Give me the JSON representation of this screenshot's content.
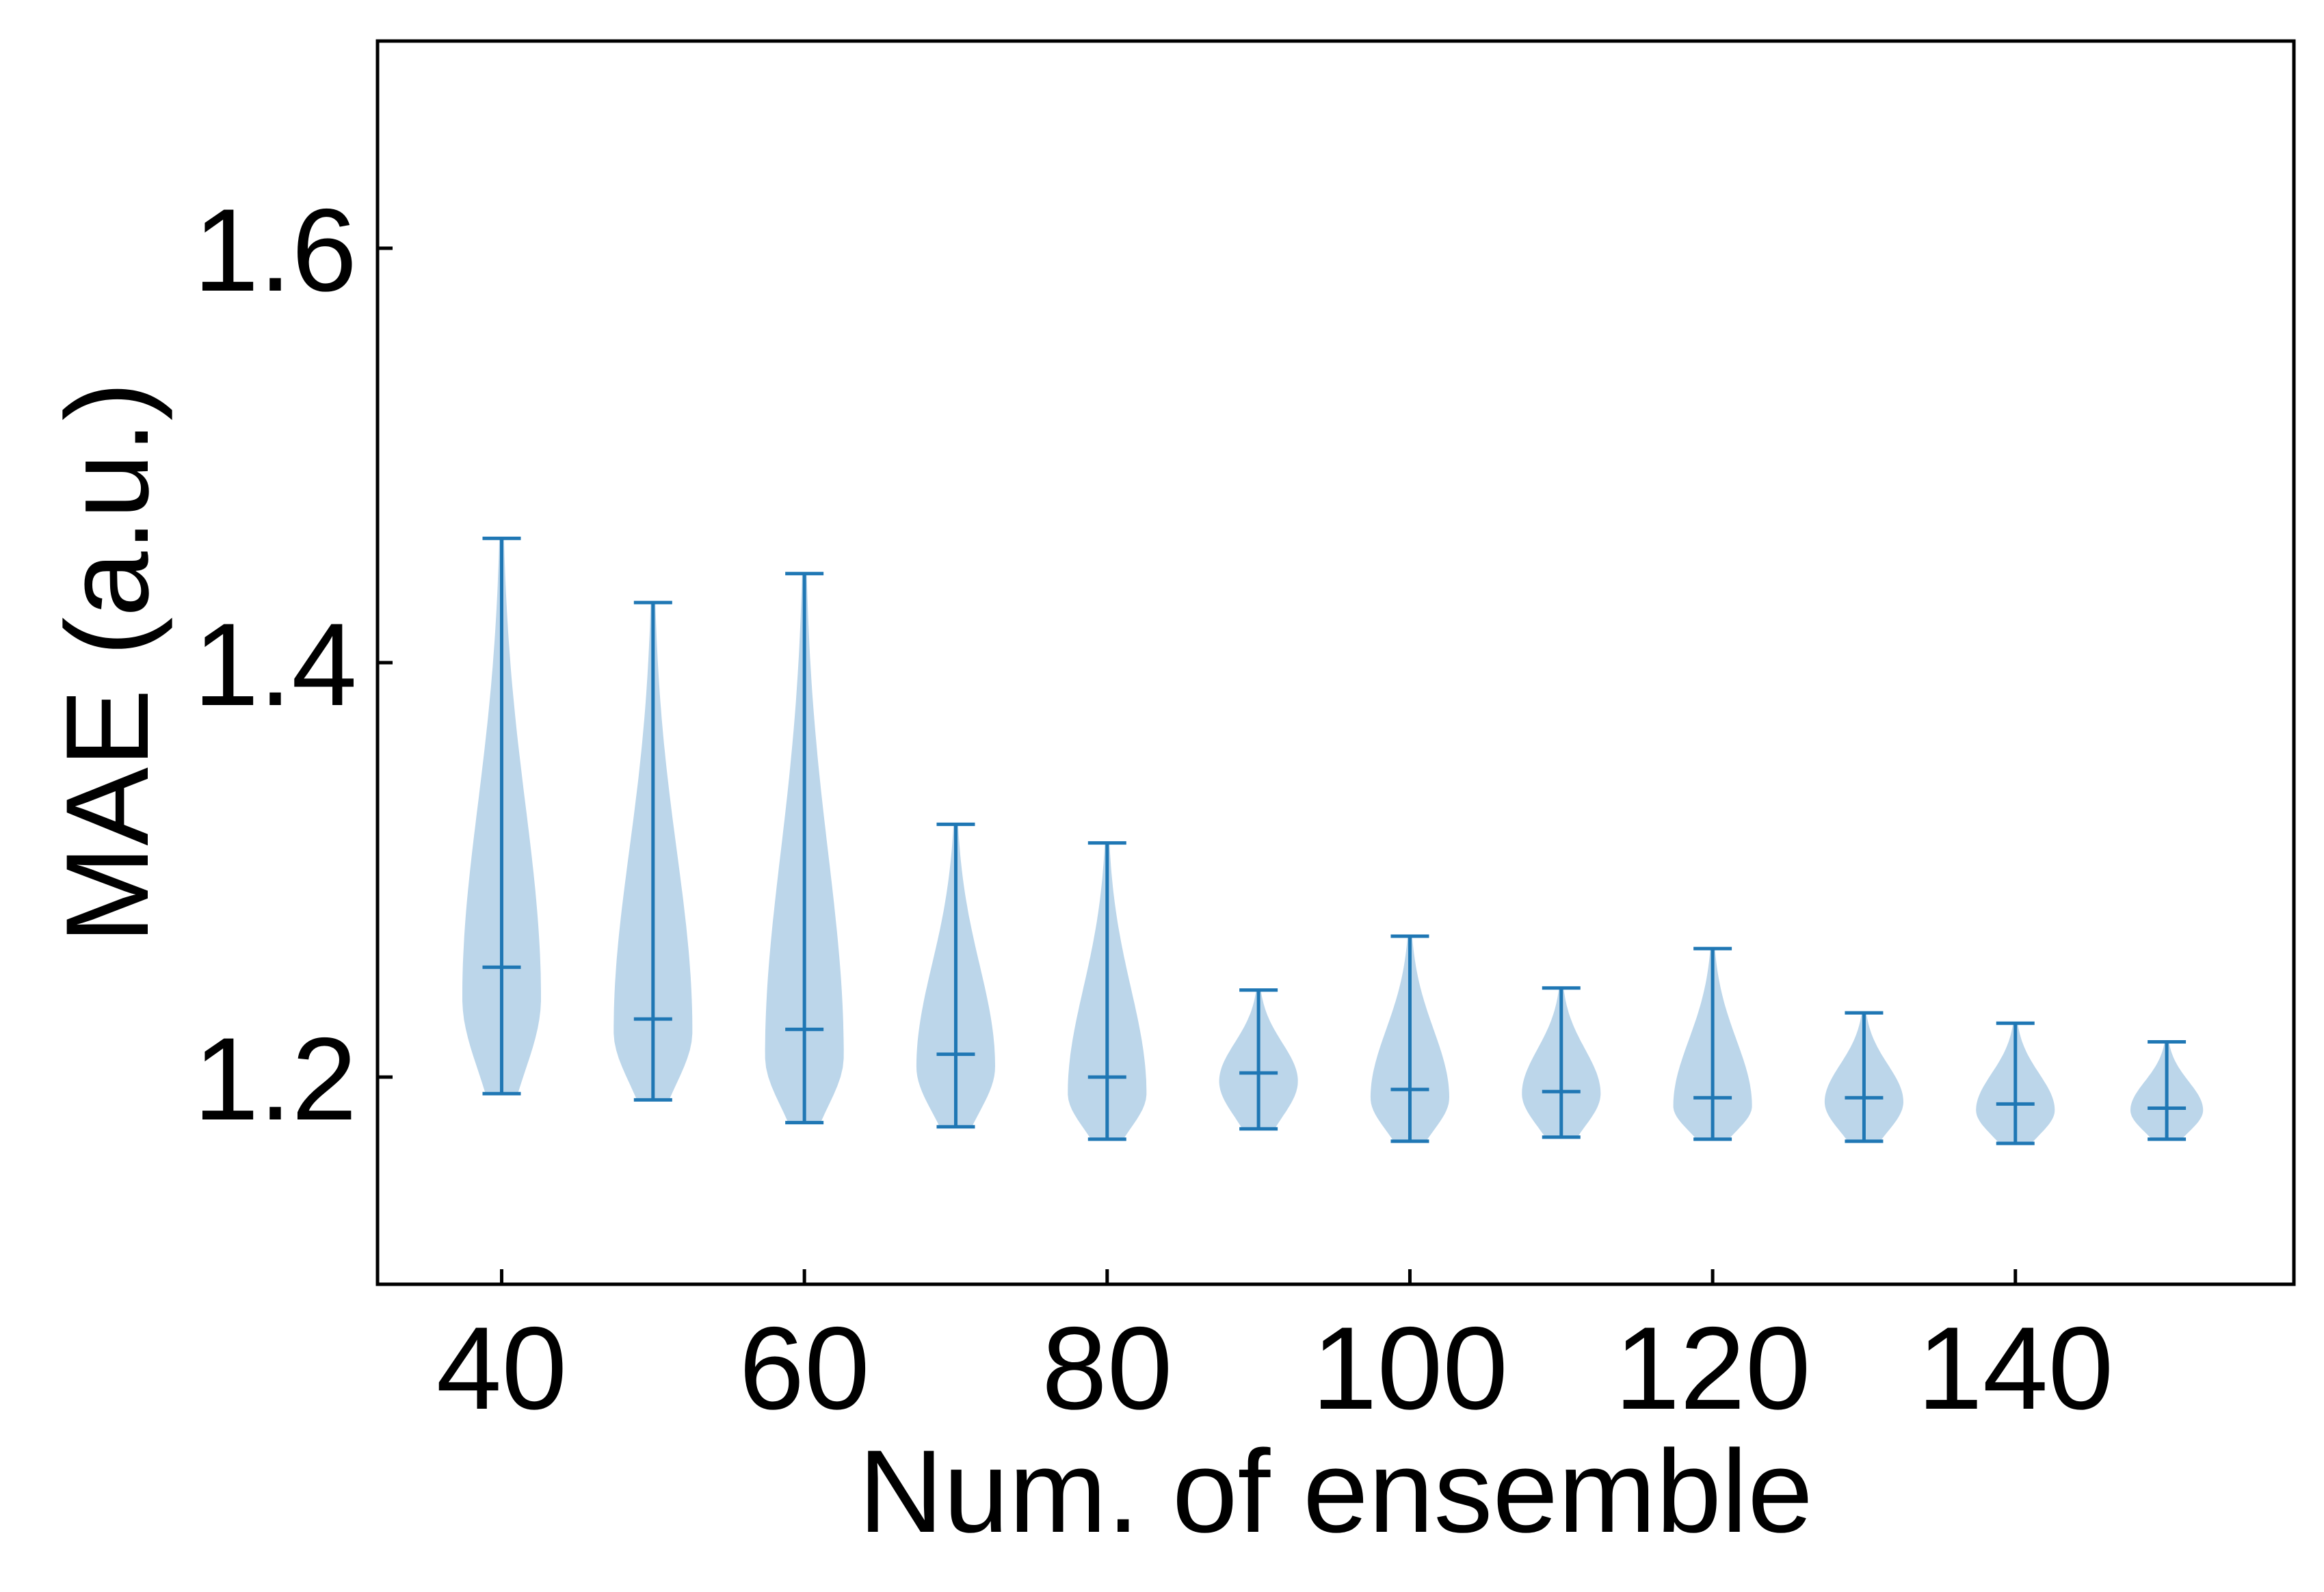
{
  "chart_data": {
    "type": "violin",
    "xlabel": "Num. of ensemble",
    "ylabel": "MAE (a.u.)",
    "xlim": [
      31.8,
      158.4
    ],
    "ylim": [
      1.1,
      1.7
    ],
    "xticks": [
      40,
      60,
      80,
      100,
      120,
      140
    ],
    "xtick_labels": [
      "40",
      "60",
      "80",
      "100",
      "120",
      "140"
    ],
    "yticks": [
      1.2,
      1.4,
      1.6
    ],
    "ytick_labels": [
      "1.2",
      "1.4",
      "1.6"
    ],
    "grid": false,
    "colors": {
      "body": "#bcd6ea",
      "lines": "#1f77b4",
      "axes": "#000000"
    },
    "violins": [
      {
        "x": 40,
        "min": 1.192,
        "max": 1.46,
        "mean": 1.253,
        "density_peak": 1.238,
        "max_half_width": 2.6
      },
      {
        "x": 50,
        "min": 1.189,
        "max": 1.429,
        "mean": 1.228,
        "density_peak": 1.222,
        "max_half_width": 2.6
      },
      {
        "x": 60,
        "min": 1.178,
        "max": 1.443,
        "mean": 1.223,
        "density_peak": 1.21,
        "max_half_width": 2.6
      },
      {
        "x": 70,
        "min": 1.176,
        "max": 1.322,
        "mean": 1.211,
        "density_peak": 1.205,
        "max_half_width": 2.6
      },
      {
        "x": 80,
        "min": 1.17,
        "max": 1.313,
        "mean": 1.2,
        "density_peak": 1.192,
        "max_half_width": 2.6
      },
      {
        "x": 90,
        "min": 1.175,
        "max": 1.242,
        "mean": 1.202,
        "density_peak": 1.198,
        "max_half_width": 2.6
      },
      {
        "x": 100,
        "min": 1.169,
        "max": 1.268,
        "mean": 1.194,
        "density_peak": 1.19,
        "max_half_width": 2.6
      },
      {
        "x": 110,
        "min": 1.171,
        "max": 1.243,
        "mean": 1.193,
        "density_peak": 1.192,
        "max_half_width": 2.6
      },
      {
        "x": 120,
        "min": 1.17,
        "max": 1.262,
        "mean": 1.19,
        "density_peak": 1.186,
        "max_half_width": 2.6
      },
      {
        "x": 130,
        "min": 1.169,
        "max": 1.231,
        "mean": 1.19,
        "density_peak": 1.188,
        "max_half_width": 2.6
      },
      {
        "x": 140,
        "min": 1.168,
        "max": 1.226,
        "mean": 1.187,
        "density_peak": 1.184,
        "max_half_width": 2.6
      },
      {
        "x": 150,
        "min": 1.17,
        "max": 1.217,
        "mean": 1.185,
        "density_peak": 1.184,
        "max_half_width": 2.4
      }
    ]
  }
}
